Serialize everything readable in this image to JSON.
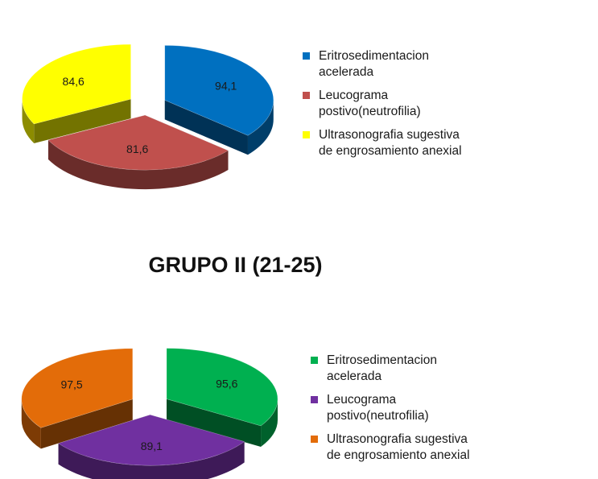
{
  "chart_data": [
    {
      "type": "pie",
      "title": "",
      "categories": [
        "Eritrosedimentacion acelerada",
        "Leucograma postivo(neutrofilia)",
        "Ultrasonografia sugestiva de engrosamiento anexial"
      ],
      "values": [
        94.1,
        81.6,
        84.6
      ],
      "value_labels": [
        "94,1",
        "81,6",
        "84,6"
      ],
      "colors": [
        "#0070C0",
        "#C0504D",
        "#FFFF00"
      ],
      "legend": {
        "placement": "right",
        "items": [
          {
            "line1": "Eritrosedimentacion",
            "line2": "acelerada"
          },
          {
            "line1": "Leucograma",
            "line2": "postivo(neutrofilia)"
          },
          {
            "line1": "Ultrasonografia sugestiva",
            "line2": "de engrosamiento anexial"
          }
        ]
      },
      "style": "3d-exploded"
    },
    {
      "type": "pie",
      "title": "GRUPO II (21-25)",
      "categories": [
        "Eritrosedimentacion acelerada",
        "Leucograma postivo(neutrofilia)",
        "Ultrasonografia sugestiva de engrosamiento anexial"
      ],
      "values": [
        95.6,
        89.1,
        97.5
      ],
      "value_labels": [
        "95,6",
        "89,1",
        "97,5"
      ],
      "colors": [
        "#00B050",
        "#7030A0",
        "#E36C09"
      ],
      "legend": {
        "placement": "right",
        "items": [
          {
            "line1": "Eritrosedimentacion",
            "line2": "acelerada"
          },
          {
            "line1": "Leucograma",
            "line2": "postivo(neutrofilia)"
          },
          {
            "line1": "Ultrasonografia sugestiva",
            "line2": "de engrosamiento anexial"
          }
        ]
      },
      "style": "3d-exploded"
    }
  ]
}
